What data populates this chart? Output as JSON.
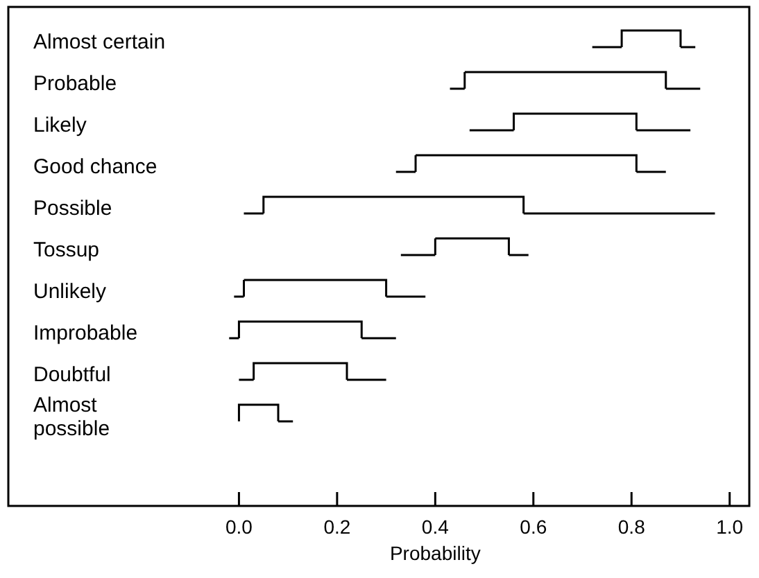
{
  "chart_data": {
    "type": "box",
    "orientation": "horizontal",
    "xlabel": "Probability",
    "categories": [
      "Almost certain",
      "Probable",
      "Likely",
      "Good chance",
      "Possible",
      "Tossup",
      "Unlikely",
      "Improbable",
      "Doubtful",
      "Almost\npossible"
    ],
    "boxes": [
      {
        "low": 0.72,
        "q1": 0.78,
        "q3": 0.9,
        "high": 0.93
      },
      {
        "low": 0.43,
        "q1": 0.46,
        "q3": 0.87,
        "high": 0.94
      },
      {
        "low": 0.47,
        "q1": 0.56,
        "q3": 0.81,
        "high": 0.92
      },
      {
        "low": 0.32,
        "q1": 0.36,
        "q3": 0.81,
        "high": 0.87
      },
      {
        "low": 0.01,
        "q1": 0.05,
        "q3": 0.58,
        "high": 0.97
      },
      {
        "low": 0.33,
        "q1": 0.4,
        "q3": 0.55,
        "high": 0.59
      },
      {
        "low": -0.01,
        "q1": 0.01,
        "q3": 0.3,
        "high": 0.38
      },
      {
        "low": -0.02,
        "q1": 0.0,
        "q3": 0.25,
        "high": 0.32
      },
      {
        "low": 0.0,
        "q1": 0.03,
        "q3": 0.22,
        "high": 0.3
      },
      {
        "low": 0.0,
        "q1": 0.0,
        "q3": 0.08,
        "high": 0.11
      }
    ],
    "color": "#000000",
    "xlim": [
      -0.47,
      1.04
    ],
    "xticks": [
      {
        "value": 0,
        "label": "0.0"
      },
      0.2,
      0.4,
      0.6,
      0.8,
      {
        "value": 1,
        "label": "1.0"
      }
    ]
  }
}
